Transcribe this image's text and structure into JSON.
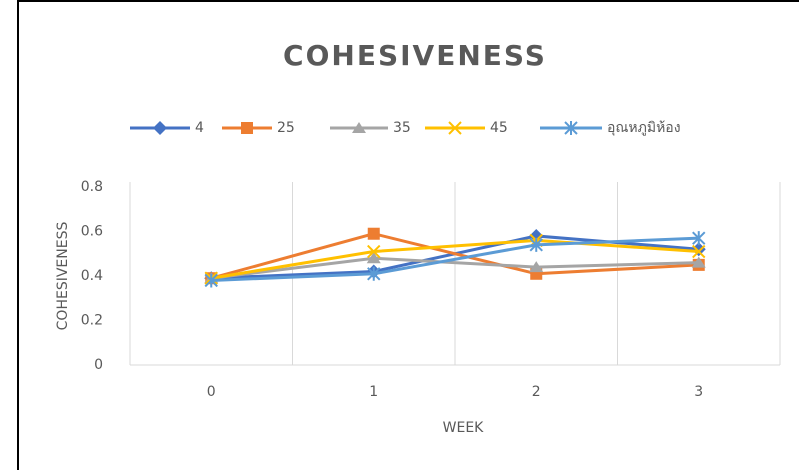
{
  "chart_data": {
    "type": "line",
    "title": "COHESIVENESS",
    "x_label": "WEEK",
    "y_label": "COHESIVENESS",
    "categories": [
      "0",
      "1",
      "2",
      "3"
    ],
    "series": [
      {
        "name": "4",
        "color": "#4472c4",
        "marker": "diamond",
        "values": [
          0.39,
          0.42,
          0.58,
          0.52
        ]
      },
      {
        "name": "25",
        "color": "#ed7d31",
        "marker": "square",
        "values": [
          0.39,
          0.59,
          0.41,
          0.45
        ]
      },
      {
        "name": "35",
        "color": "#a5a5a5",
        "marker": "triangle",
        "values": [
          0.39,
          0.48,
          0.44,
          0.46
        ]
      },
      {
        "name": "45",
        "color": "#ffc000",
        "marker": "x",
        "values": [
          0.39,
          0.51,
          0.56,
          0.51
        ]
      },
      {
        "name": "อุณหภูมิห้อง",
        "color": "#5b9bd5",
        "marker": "asterisk",
        "values": [
          0.38,
          0.41,
          0.54,
          0.57
        ]
      }
    ],
    "ylim": [
      0,
      0.8
    ],
    "yticks": [
      0,
      0.2,
      0.4,
      0.6,
      0.8
    ],
    "grid": "vertical",
    "legend": "top"
  }
}
